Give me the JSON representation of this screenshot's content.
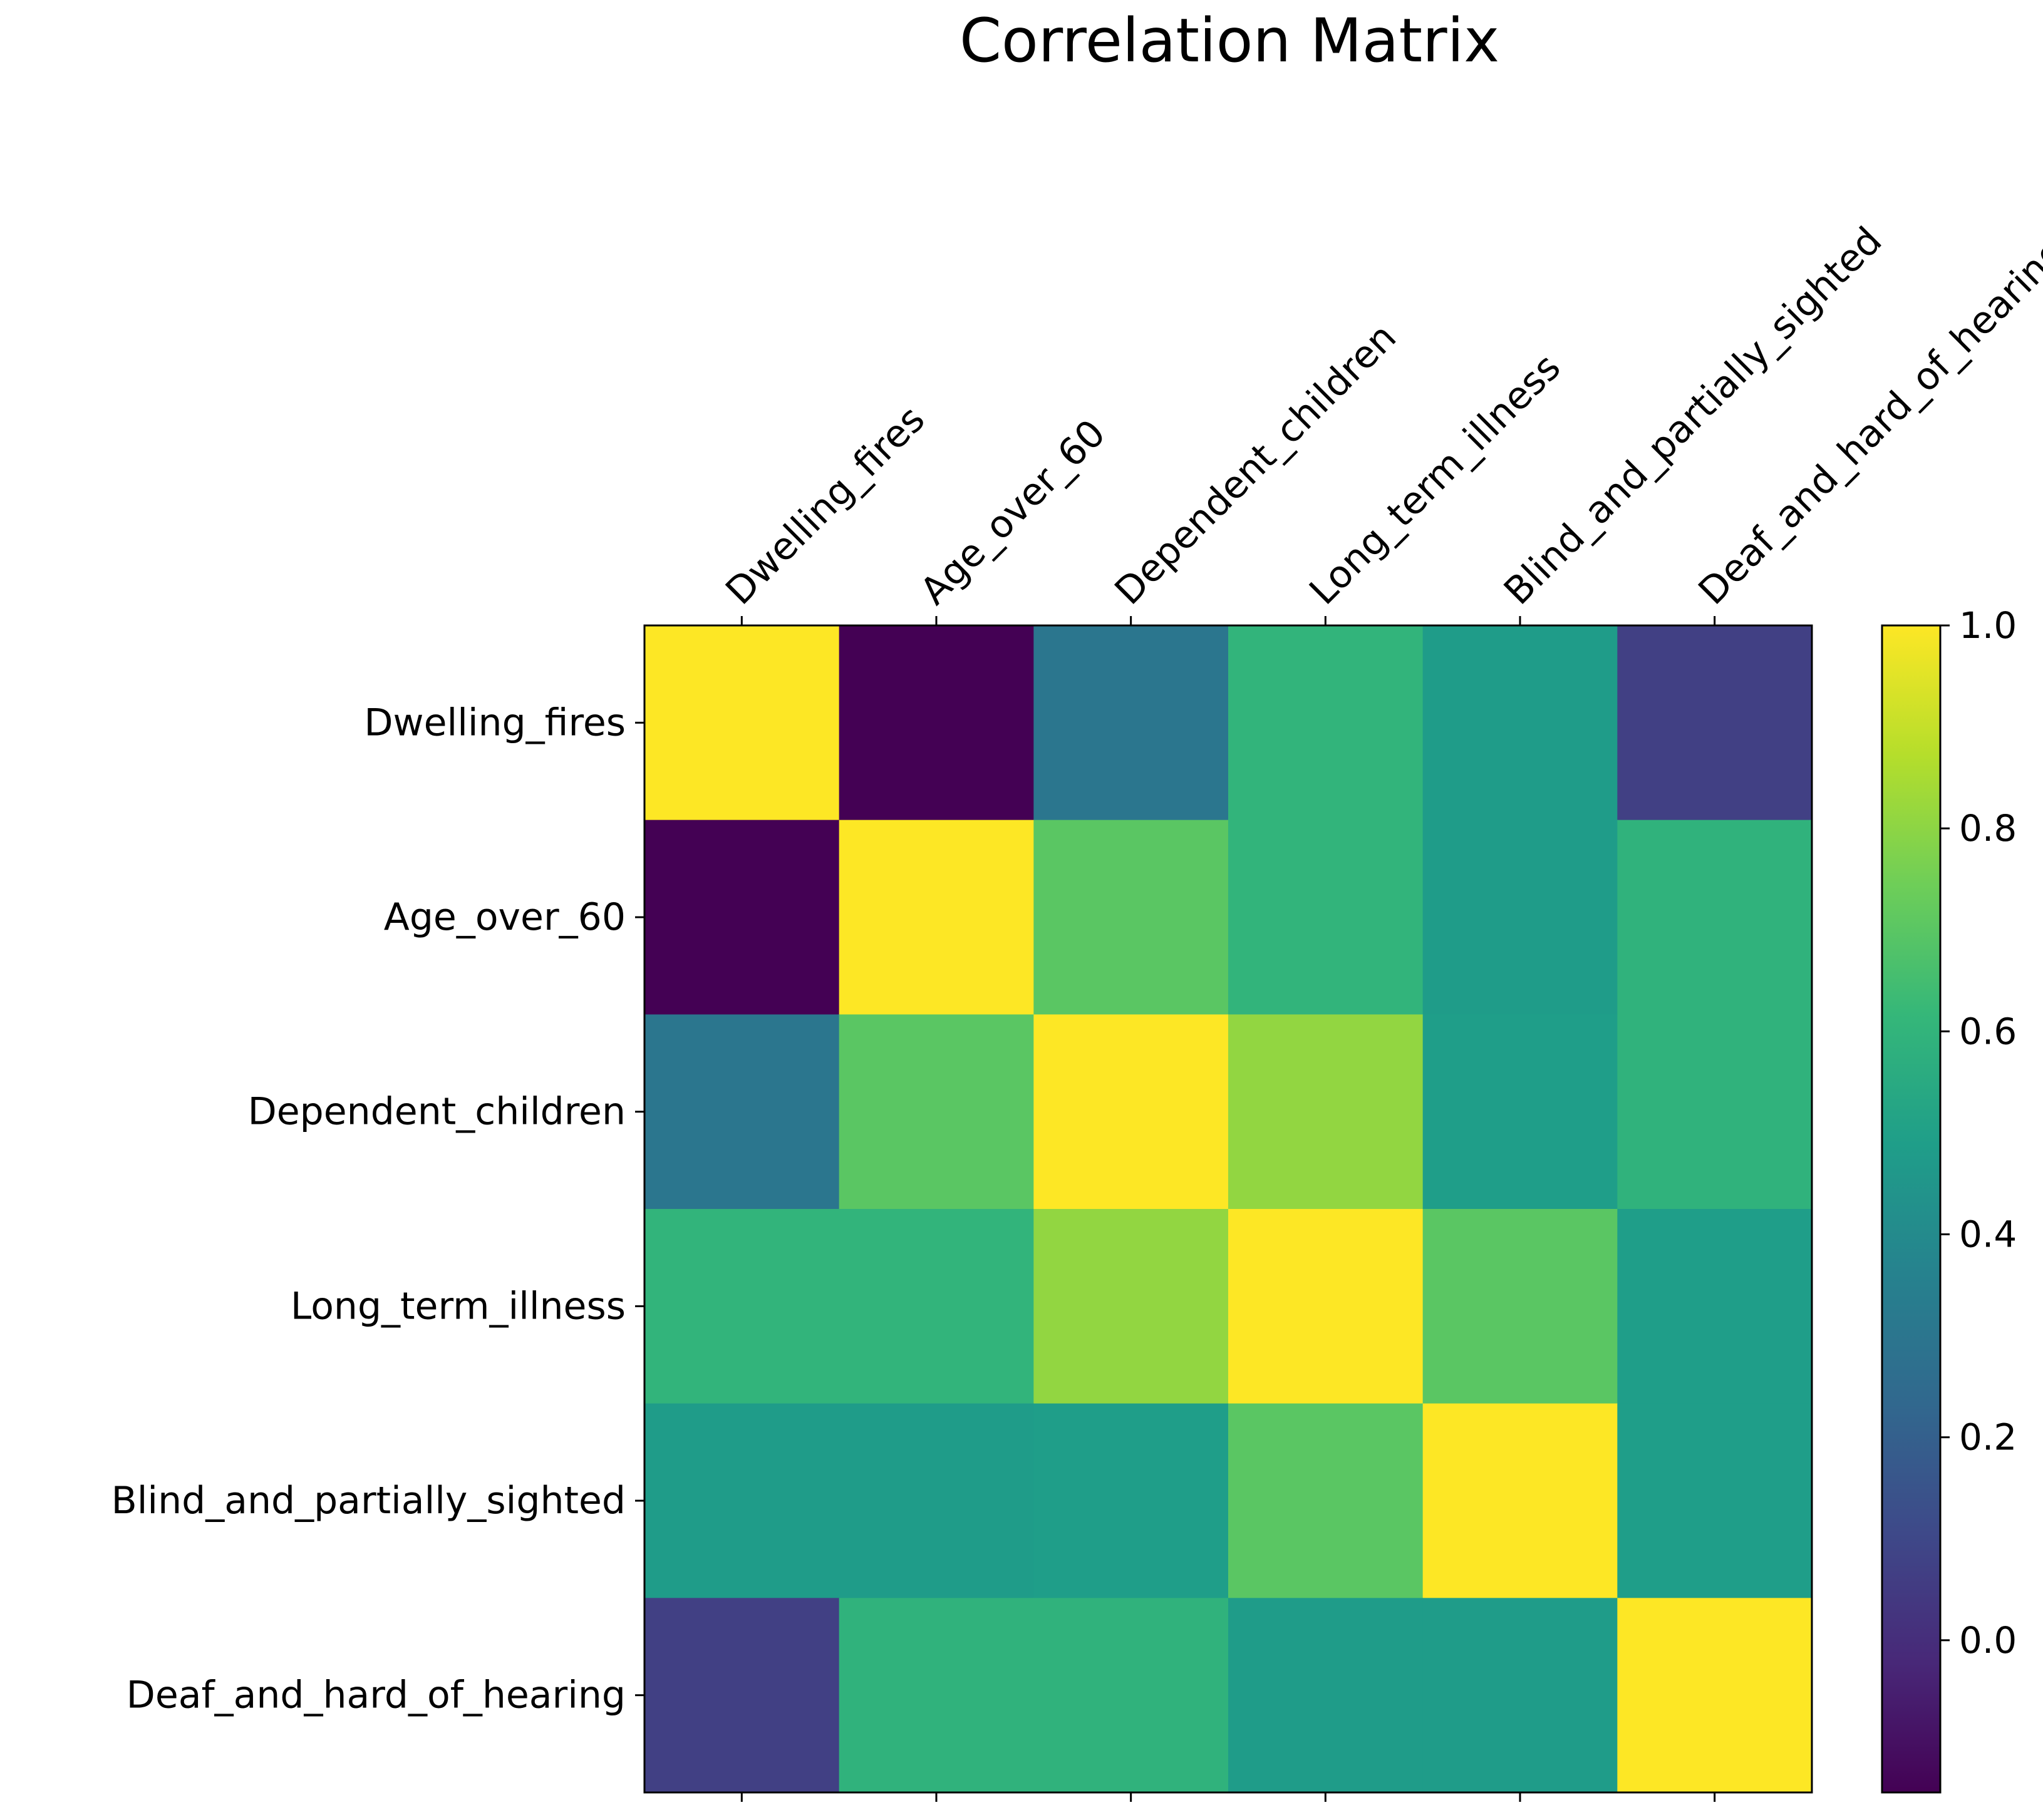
{
  "chart_data": {
    "type": "heatmap",
    "title": "Correlation Matrix",
    "xlabel": "",
    "ylabel": "",
    "x_categories": [
      "Dwelling_fires",
      "Age_over_60",
      "Dependent_children",
      "Long_term_illness",
      "Blind_and_partially_sighted",
      "Deaf_and_hard_of_hearing"
    ],
    "y_categories": [
      "Dwelling_fires",
      "Age_over_60",
      "Dependent_children",
      "Long_term_illness",
      "Blind_and_partially_sighted",
      "Deaf_and_hard_of_hearing"
    ],
    "values": [
      [
        1.0,
        -0.15,
        0.3,
        0.6,
        0.48,
        0.07
      ],
      [
        -0.15,
        1.0,
        0.7,
        0.6,
        0.48,
        0.59
      ],
      [
        0.3,
        0.7,
        1.0,
        0.81,
        0.49,
        0.59
      ],
      [
        0.6,
        0.6,
        0.81,
        1.0,
        0.7,
        0.49
      ],
      [
        0.48,
        0.48,
        0.49,
        0.7,
        1.0,
        0.49
      ],
      [
        0.07,
        0.59,
        0.59,
        0.48,
        0.48,
        1.0
      ]
    ],
    "colormap": "viridis",
    "value_range": [
      -0.15,
      1.0
    ],
    "colorbar": {
      "ticks": [
        0.0,
        0.2,
        0.4,
        0.6,
        0.8,
        1.0
      ],
      "tick_labels": [
        "0.0",
        "0.2",
        "0.4",
        "0.6",
        "0.8",
        "1.0"
      ],
      "placement": "right"
    },
    "grid": false,
    "x_tick_position": "top",
    "x_tick_rotation_deg": 45
  }
}
